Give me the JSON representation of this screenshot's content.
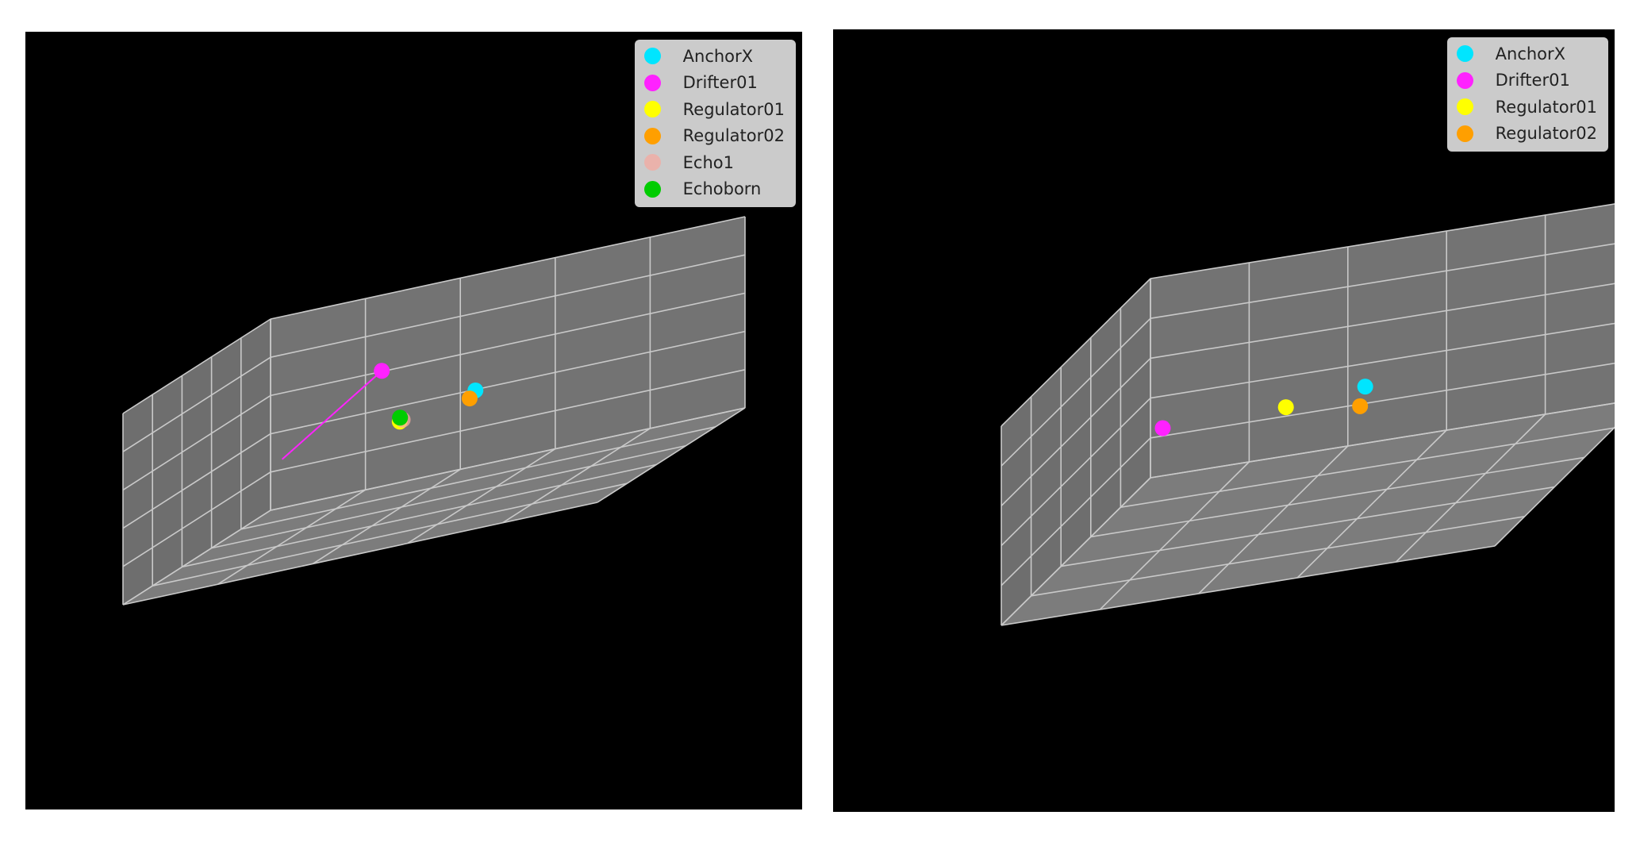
{
  "chart_data": [
    {
      "type": "scatter3d",
      "title": "",
      "grid": true,
      "legend_position": "top-right",
      "series": [
        {
          "name": "AnchorX",
          "color": "#00e5ff",
          "points": [
            [
              0.55,
              0.38,
              0.52
            ]
          ]
        },
        {
          "name": "Drifter01",
          "color": "#ff22ff",
          "points": [
            [
              0.25,
              0.05,
              0.62
            ]
          ],
          "trail": [
            [
              0.04,
              0.05,
              0.27
            ],
            [
              0.25,
              0.05,
              0.62
            ]
          ]
        },
        {
          "name": "Regulator01",
          "color": "#ffff00",
          "points": [
            [
              0.35,
              0.25,
              0.4
            ]
          ]
        },
        {
          "name": "Regulator02",
          "color": "#ff9f00",
          "points": [
            [
              0.6,
              0.58,
              0.55
            ]
          ]
        },
        {
          "name": "Echo1",
          "color": "#f4a9a0",
          "opacity": 0.75,
          "points": [
            [
              0.35,
              0.23,
              0.4
            ]
          ]
        },
        {
          "name": "Echoborn",
          "color": "#00cc00",
          "points": [
            [
              0.36,
              0.28,
              0.43
            ]
          ]
        }
      ]
    },
    {
      "type": "scatter3d",
      "title": "",
      "grid": true,
      "legend_position": "top-right",
      "series": [
        {
          "name": "AnchorX",
          "color": "#00e5ff",
          "points": [
            [
              0.55,
              0.38,
              0.52
            ]
          ]
        },
        {
          "name": "Drifter01",
          "color": "#ff22ff",
          "points": [
            [
              0.04,
              0.05,
              0.27
            ]
          ]
        },
        {
          "name": "Regulator01",
          "color": "#ffff00",
          "points": [
            [
              0.35,
              0.25,
              0.4
            ]
          ]
        },
        {
          "name": "Regulator02",
          "color": "#ff9f00",
          "points": [
            [
              0.6,
              0.58,
              0.55
            ]
          ]
        }
      ]
    }
  ]
}
